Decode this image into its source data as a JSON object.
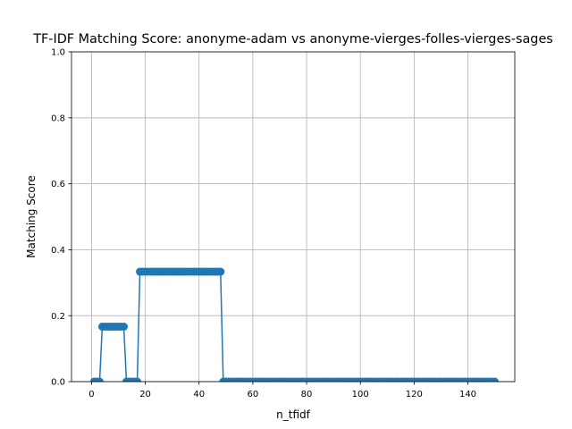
{
  "chart_data": {
    "type": "line",
    "title": "TF-IDF Matching Score: anonyme-adam vs anonyme-vierges-folles-vierges-sages",
    "xlabel": "n_tfidf",
    "ylabel": "Matching Score",
    "xlim": [
      -7.45,
      157.45
    ],
    "ylim": [
      0,
      1
    ],
    "xticks": [
      0,
      20,
      40,
      60,
      80,
      100,
      120,
      140
    ],
    "yticks": [
      0.0,
      0.2,
      0.4,
      0.6,
      0.8,
      1.0
    ],
    "xtick_labels": [
      "0",
      "20",
      "40",
      "60",
      "80",
      "100",
      "120",
      "140"
    ],
    "ytick_labels": [
      "0.0",
      "0.2",
      "0.4",
      "0.6",
      "0.8",
      "1.0"
    ],
    "grid": true,
    "legend": "none",
    "color": "#1f77b4",
    "marker": "circle",
    "segments": [
      {
        "from": 1,
        "to": 3,
        "value": 0.0
      },
      {
        "from": 4,
        "to": 12,
        "value": 0.16667
      },
      {
        "from": 13,
        "to": 17,
        "value": 0.0
      },
      {
        "from": 18,
        "to": 48,
        "value": 0.33333
      },
      {
        "from": 49,
        "to": 150,
        "value": 0.0
      }
    ]
  }
}
